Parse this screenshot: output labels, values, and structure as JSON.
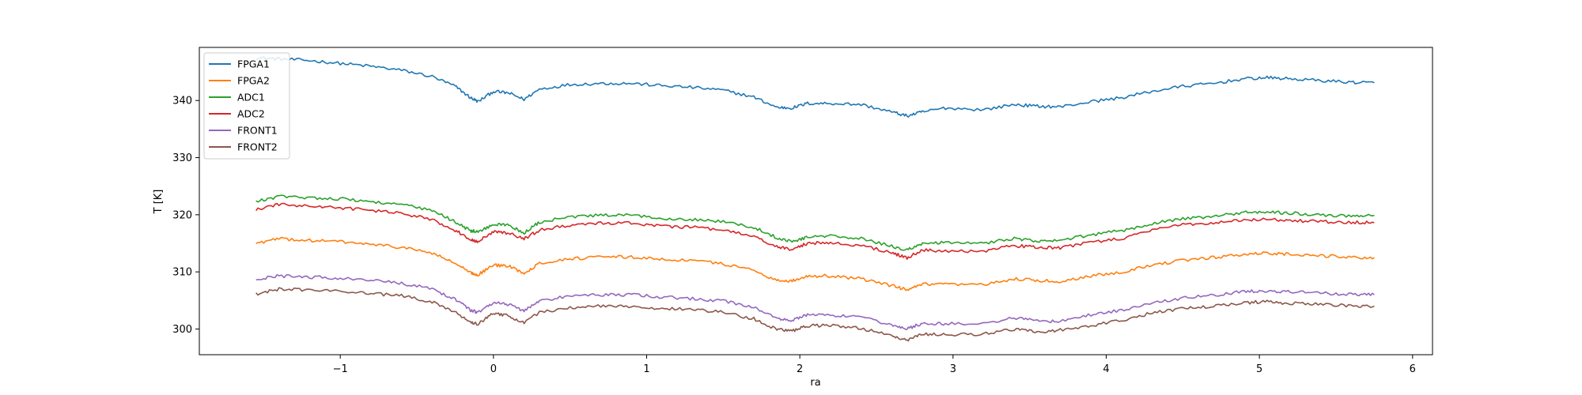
{
  "chart_data": {
    "type": "line",
    "xlabel": "ra",
    "ylabel": "T [K]",
    "xlim": [
      -1.92,
      6.13
    ],
    "ylim": [
      295.5,
      349.3
    ],
    "xticks": [
      -1,
      0,
      1,
      2,
      3,
      4,
      5,
      6
    ],
    "xtick_labels": [
      "−1",
      "0",
      "1",
      "2",
      "3",
      "4",
      "5",
      "6"
    ],
    "yticks": [
      300,
      310,
      320,
      330,
      340
    ],
    "ytick_labels": [
      "300",
      "310",
      "320",
      "330",
      "340"
    ],
    "grid": false,
    "legend_position": "upper-left",
    "x": [
      -1.55,
      -1.4,
      -1.2,
      -1.0,
      -0.8,
      -0.6,
      -0.4,
      -0.25,
      -0.15,
      -0.1,
      0.0,
      0.1,
      0.2,
      0.3,
      0.5,
      0.7,
      0.9,
      1.1,
      1.3,
      1.5,
      1.7,
      1.85,
      1.95,
      2.05,
      2.2,
      2.4,
      2.6,
      2.7,
      2.8,
      2.95,
      3.2,
      3.4,
      3.55,
      3.7,
      3.9,
      4.1,
      4.3,
      4.5,
      4.7,
      4.9,
      5.05,
      5.2,
      5.4,
      5.6,
      5.75
    ],
    "series": [
      {
        "name": "FPGA1",
        "color": "#1f77b4",
        "values": [
          347.5,
          347.3,
          347.0,
          346.5,
          346.0,
          345.3,
          344.2,
          342.5,
          340.5,
          339.8,
          341.6,
          341.3,
          340.2,
          342.0,
          342.8,
          343.0,
          343.0,
          342.6,
          342.3,
          341.8,
          340.6,
          338.8,
          338.7,
          339.5,
          339.5,
          339.3,
          338.0,
          337.3,
          338.0,
          338.7,
          338.4,
          339.3,
          339.0,
          338.9,
          339.8,
          340.5,
          341.6,
          342.5,
          343.0,
          343.8,
          344.0,
          343.8,
          343.5,
          343.2,
          343.1
        ]
      },
      {
        "name": "FPGA2",
        "color": "#ff7f0e",
        "values": [
          315.0,
          315.8,
          315.5,
          315.3,
          314.8,
          314.3,
          313.3,
          311.5,
          309.8,
          309.5,
          311.2,
          311.0,
          309.8,
          311.5,
          312.3,
          312.6,
          312.6,
          312.2,
          312.0,
          311.4,
          310.3,
          308.5,
          308.4,
          309.3,
          309.3,
          308.8,
          307.6,
          306.8,
          307.8,
          307.8,
          307.7,
          308.8,
          308.5,
          308.3,
          309.3,
          310.0,
          311.2,
          312.0,
          312.5,
          313.1,
          313.3,
          313.1,
          312.8,
          312.6,
          312.5
        ]
      },
      {
        "name": "ADC1",
        "color": "#2ca02c",
        "values": [
          322.3,
          323.2,
          323.0,
          322.8,
          322.3,
          321.8,
          320.7,
          318.8,
          317.2,
          317.0,
          318.3,
          318.2,
          316.8,
          318.7,
          319.6,
          319.9,
          319.9,
          319.4,
          319.2,
          318.8,
          317.8,
          316.0,
          315.3,
          316.1,
          316.3,
          315.8,
          314.5,
          313.8,
          315.0,
          315.1,
          315.0,
          315.9,
          315.3,
          315.5,
          316.5,
          317.2,
          318.5,
          319.3,
          319.7,
          320.4,
          320.5,
          320.3,
          320.0,
          319.8,
          319.9
        ]
      },
      {
        "name": "ADC2",
        "color": "#d62728",
        "values": [
          320.9,
          321.8,
          321.5,
          321.2,
          320.8,
          320.2,
          319.2,
          317.3,
          315.7,
          315.3,
          317.0,
          316.8,
          315.8,
          317.3,
          318.2,
          318.5,
          318.6,
          318.0,
          317.8,
          317.3,
          316.2,
          314.4,
          313.9,
          315.0,
          315.1,
          314.6,
          313.4,
          312.4,
          313.8,
          313.7,
          313.6,
          314.6,
          314.3,
          314.2,
          315.2,
          315.8,
          317.3,
          318.3,
          318.6,
          319.1,
          319.2,
          319.0,
          318.8,
          318.7,
          318.6
        ]
      },
      {
        "name": "FRONT1",
        "color": "#9467bd",
        "values": [
          308.6,
          309.3,
          309.1,
          308.9,
          308.5,
          308.0,
          307.0,
          305.2,
          303.3,
          302.9,
          304.7,
          304.3,
          303.2,
          304.9,
          305.8,
          306.0,
          306.0,
          305.6,
          305.3,
          304.9,
          303.8,
          301.9,
          301.5,
          302.5,
          302.4,
          302.0,
          300.8,
          300.0,
          301.0,
          300.9,
          301.0,
          302.0,
          301.4,
          301.3,
          302.5,
          303.3,
          304.5,
          305.4,
          305.9,
          306.6,
          306.7,
          306.5,
          306.3,
          306.1,
          306.0
        ]
      },
      {
        "name": "FRONT2",
        "color": "#8c564b",
        "values": [
          306.1,
          307.0,
          306.8,
          306.7,
          306.2,
          305.8,
          304.8,
          303.0,
          301.2,
          300.9,
          302.8,
          302.3,
          301.1,
          302.9,
          303.8,
          304.0,
          304.0,
          303.6,
          303.4,
          302.9,
          301.8,
          299.9,
          299.6,
          300.6,
          300.6,
          300.1,
          298.8,
          298.0,
          299.1,
          299.0,
          299.1,
          300.0,
          299.5,
          299.8,
          300.6,
          301.5,
          302.8,
          303.6,
          304.0,
          304.6,
          304.8,
          304.5,
          304.3,
          304.1,
          304.0
        ]
      }
    ]
  }
}
